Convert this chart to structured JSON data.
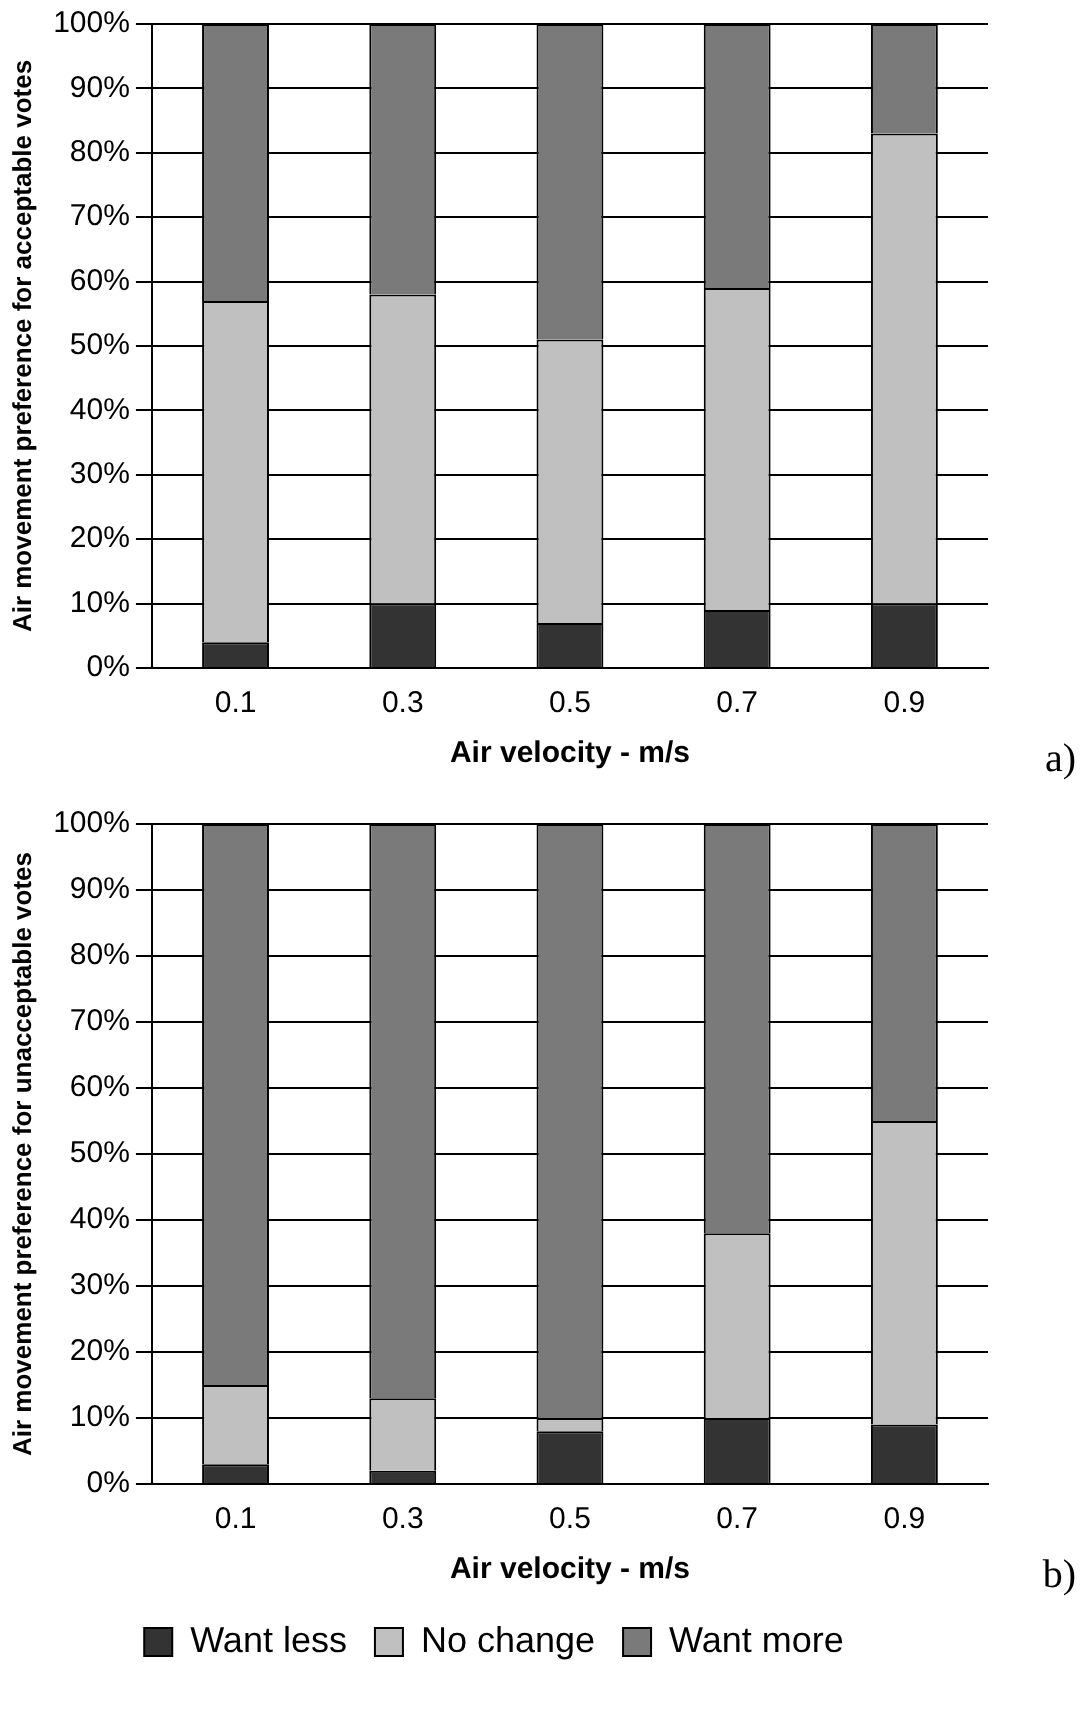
{
  "chart_data": [
    {
      "type": "bar",
      "stacked": true,
      "categories": [
        "0.1",
        "0.3",
        "0.5",
        "0.7",
        "0.9"
      ],
      "series": [
        {
          "color": "#333333",
          "values": [
            4,
            10,
            7,
            9,
            10
          ]
        },
        {
          "color": "#c0c0c0",
          "values": [
            53,
            48,
            44,
            50,
            73
          ]
        },
        {
          "color": "#7a7a7a",
          "values": [
            43,
            42,
            49,
            41,
            17
          ]
        }
      ],
      "xlabel": "Air velocity - m/s",
      "ylabel": "Air movement preference for acceptable votes",
      "ylim": [
        0,
        100
      ],
      "yticks": [
        {
          "value": 0,
          "label": "0%"
        },
        {
          "value": 10,
          "label": "10%"
        },
        {
          "value": 20,
          "label": "20%"
        },
        {
          "value": 30,
          "label": "30%"
        },
        {
          "value": 40,
          "label": "40%"
        },
        {
          "value": 50,
          "label": "50%"
        },
        {
          "value": 60,
          "label": "60%"
        },
        {
          "value": 70,
          "label": "70%"
        },
        {
          "value": 80,
          "label": "80%"
        },
        {
          "value": 90,
          "label": "90%"
        },
        {
          "value": 100,
          "label": "100%"
        }
      ],
      "grid": "y",
      "legend": false,
      "annotations": [
        "a)"
      ]
    },
    {
      "type": "bar",
      "stacked": true,
      "categories": [
        "0.1",
        "0.3",
        "0.5",
        "0.7",
        "0.9"
      ],
      "series": [
        {
          "name": "Want less",
          "color": "#333333",
          "values": [
            3,
            2,
            8,
            10,
            9
          ]
        },
        {
          "name": "No change",
          "color": "#c0c0c0",
          "values": [
            12,
            11,
            2,
            28,
            46
          ]
        },
        {
          "name": "Want more",
          "color": "#7a7a7a",
          "values": [
            85,
            87,
            90,
            62,
            45
          ]
        }
      ],
      "xlabel": "Air velocity - m/s",
      "ylabel": "Air movement preference for unacceptable votes",
      "ylim": [
        0,
        100
      ],
      "yticks": [
        {
          "value": 0,
          "label": "0%"
        },
        {
          "value": 10,
          "label": "10%"
        },
        {
          "value": 20,
          "label": "20%"
        },
        {
          "value": 30,
          "label": "30%"
        },
        {
          "value": 40,
          "label": "40%"
        },
        {
          "value": 50,
          "label": "50%"
        },
        {
          "value": 60,
          "label": "60%"
        },
        {
          "value": 70,
          "label": "70%"
        },
        {
          "value": 80,
          "label": "80%"
        },
        {
          "value": 90,
          "label": "90%"
        },
        {
          "value": 100,
          "label": "100%"
        }
      ],
      "grid": "y",
      "legend": "bottom",
      "annotations": [
        "b)"
      ]
    }
  ]
}
